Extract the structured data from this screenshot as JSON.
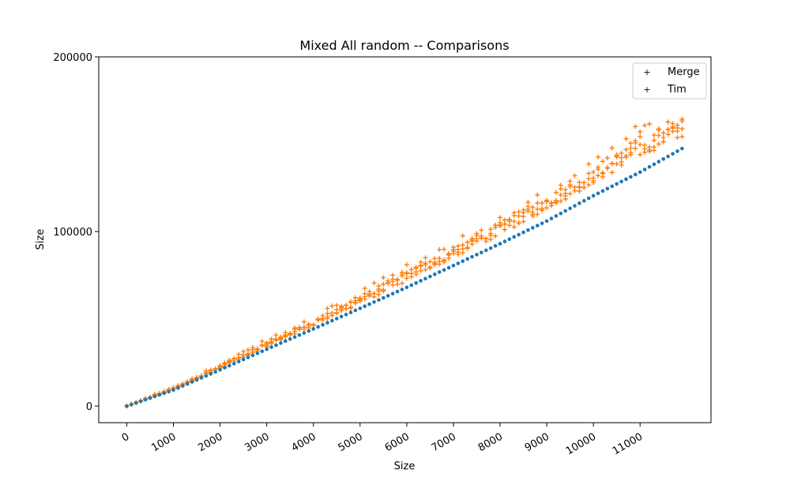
{
  "chart_data": {
    "type": "scatter",
    "title": "Mixed All random -- Comparisons",
    "xlabel": "Size",
    "ylabel": "Size",
    "xlim": [
      -600,
      12520
    ],
    "ylim": [
      -9500,
      200000
    ],
    "x_ticks": [
      0,
      1000,
      2000,
      3000,
      4000,
      5000,
      6000,
      7000,
      8000,
      9000,
      10000,
      11000
    ],
    "y_ticks": [
      0,
      100000,
      200000
    ],
    "legend_position": "upper right",
    "grid": false,
    "series": [
      {
        "name": "Merge",
        "color": "#1f77b4",
        "marker": "+",
        "x": [
          0,
          1000,
          2000,
          3000,
          4000,
          5000,
          6000,
          7000,
          8000,
          9000,
          10000,
          11000,
          11900
        ],
        "y": [
          0,
          9200,
          20800,
          32600,
          44200,
          56000,
          68000,
          80500,
          93000,
          106000,
          120500,
          134000,
          147500
        ]
      },
      {
        "name": "Tim",
        "color": "#ff7f0e",
        "marker": "+",
        "x": [
          0,
          1000,
          2000,
          3000,
          4000,
          5000,
          6000,
          7000,
          8000,
          9000,
          10000,
          11000,
          11900
        ],
        "y_min": [
          0,
          9500,
          21500,
          34000,
          46000,
          58500,
          71500,
          85000,
          98000,
          112500,
          127500,
          142500,
          154000
        ],
        "y_max": [
          0,
          11500,
          24500,
          38500,
          51500,
          66500,
          81500,
          94500,
          110000,
          126000,
          141000,
          163000,
          172000
        ]
      }
    ]
  }
}
